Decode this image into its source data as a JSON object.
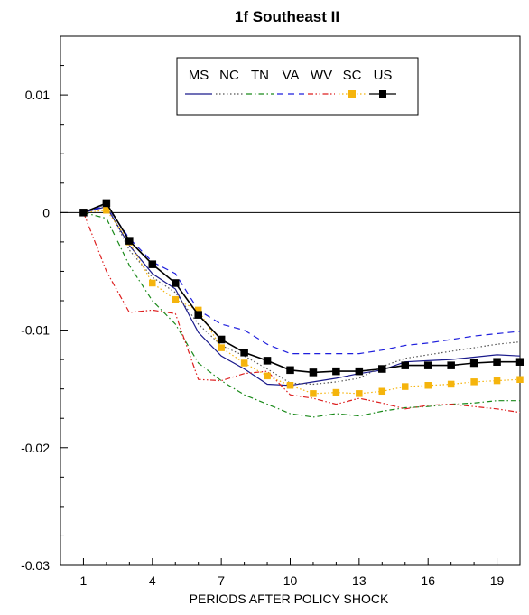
{
  "chart_data": {
    "type": "line",
    "title": "1f Southeast II",
    "xlabel": "PERIODS AFTER POLICY SHOCK",
    "ylabel": "",
    "xlim": [
      0,
      20
    ],
    "ylim": [
      -0.03,
      0.015
    ],
    "xticks": [
      1,
      4,
      7,
      10,
      13,
      16,
      19
    ],
    "xtick_labels": [
      "1",
      "4",
      "7",
      "10",
      "13",
      "16",
      "19"
    ],
    "yticks": [
      0.01,
      0,
      -0.01,
      -0.02,
      -0.03
    ],
    "ytick_labels": [
      "0.01",
      "0",
      "-0.01",
      "-0.02",
      "-0.03"
    ],
    "zero_line": true,
    "grid": false,
    "legend_position": "top-center",
    "x": [
      1,
      2,
      3,
      4,
      5,
      6,
      7,
      8,
      9,
      10,
      11,
      12,
      13,
      14,
      15,
      16,
      17,
      18,
      19,
      20
    ],
    "series": [
      {
        "name": "MS",
        "color": "#1a1a8c",
        "dash": "solid",
        "marker": "none",
        "values": [
          0,
          0.0005,
          -0.0028,
          -0.0052,
          -0.0065,
          -0.0102,
          -0.0122,
          -0.0133,
          -0.0146,
          -0.0147,
          -0.0144,
          -0.0141,
          -0.0137,
          -0.0134,
          -0.0127,
          -0.0126,
          -0.0125,
          -0.0123,
          -0.0121,
          -0.0122
        ]
      },
      {
        "name": "NC",
        "color": "#555555",
        "dash": "dotted",
        "marker": "none",
        "values": [
          0,
          0.0007,
          -0.0032,
          -0.0055,
          -0.0068,
          -0.0095,
          -0.0113,
          -0.0122,
          -0.0133,
          -0.0145,
          -0.0146,
          -0.0144,
          -0.0141,
          -0.0131,
          -0.0124,
          -0.0121,
          -0.0118,
          -0.0115,
          -0.0112,
          -0.011
        ]
      },
      {
        "name": "TN",
        "color": "#1a8a1a",
        "dash": "dashdot",
        "marker": "none",
        "values": [
          0,
          -0.0005,
          -0.0045,
          -0.0075,
          -0.0095,
          -0.0128,
          -0.0143,
          -0.0155,
          -0.0163,
          -0.0171,
          -0.0174,
          -0.0171,
          -0.0173,
          -0.0169,
          -0.0166,
          -0.0165,
          -0.0163,
          -0.0162,
          -0.016,
          -0.016
        ]
      },
      {
        "name": "VA",
        "color": "#1f1fdd",
        "dash": "dashed",
        "marker": "none",
        "values": [
          0,
          0.0006,
          -0.0022,
          -0.0042,
          -0.0052,
          -0.0083,
          -0.0095,
          -0.01,
          -0.0112,
          -0.012,
          -0.012,
          -0.012,
          -0.012,
          -0.0117,
          -0.0113,
          -0.0111,
          -0.0108,
          -0.0105,
          -0.0103,
          -0.0101
        ]
      },
      {
        "name": "WV",
        "color": "#dd1f1f",
        "dash": "dashdotdot",
        "marker": "none",
        "values": [
          0,
          -0.005,
          -0.0085,
          -0.0083,
          -0.0086,
          -0.0142,
          -0.0143,
          -0.0137,
          -0.0135,
          -0.0155,
          -0.0158,
          -0.0163,
          -0.0158,
          -0.0162,
          -0.0167,
          -0.0164,
          -0.0163,
          -0.0165,
          -0.0167,
          -0.017
        ]
      },
      {
        "name": "SC",
        "color": "#f5b40c",
        "dash": "dotted",
        "marker": "square",
        "values": [
          0,
          0.0002,
          -0.0025,
          -0.006,
          -0.0074,
          -0.0083,
          -0.0115,
          -0.0128,
          -0.0139,
          -0.0147,
          -0.0154,
          -0.0153,
          -0.0154,
          -0.0152,
          -0.0148,
          -0.0147,
          -0.0146,
          -0.0144,
          -0.0143,
          -0.0142
        ]
      },
      {
        "name": "US",
        "color": "#000000",
        "dash": "solid",
        "marker": "square",
        "values": [
          0,
          0.0008,
          -0.0024,
          -0.0044,
          -0.006,
          -0.0087,
          -0.0108,
          -0.0119,
          -0.0126,
          -0.0134,
          -0.0136,
          -0.0135,
          -0.0135,
          -0.0133,
          -0.013,
          -0.013,
          -0.013,
          -0.0128,
          -0.0127,
          -0.0127
        ]
      }
    ]
  }
}
